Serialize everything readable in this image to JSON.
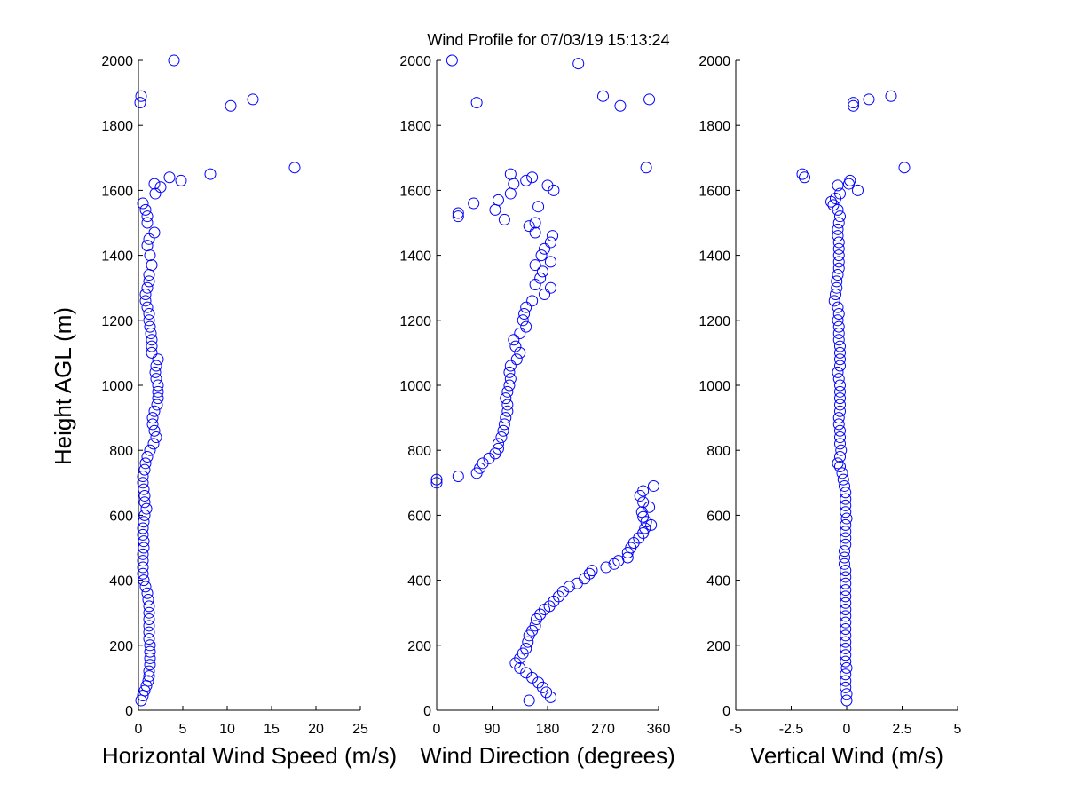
{
  "title": "Wind Profile for  07/03/19 15:13:24",
  "colors": {
    "marker": "#0000ff",
    "axis": "#000000",
    "background": "#ffffff"
  },
  "chart_data": [
    {
      "type": "scatter",
      "xlabel": "Horizontal Wind Speed (m/s)",
      "ylabel": "Height AGL (m)",
      "xlim": [
        0,
        25
      ],
      "ylim": [
        0,
        2000
      ],
      "xticks": [
        "0",
        "5",
        "10",
        "15",
        "20",
        "25"
      ],
      "yticks": [
        "0",
        "200",
        "400",
        "600",
        "800",
        "1000",
        "1200",
        "1400",
        "1600",
        "1800",
        "2000"
      ],
      "grid": false,
      "points": [
        {
          "x": 0.3,
          "y": 30
        },
        {
          "x": 0.5,
          "y": 45
        },
        {
          "x": 0.7,
          "y": 60
        },
        {
          "x": 0.9,
          "y": 75
        },
        {
          "x": 1.1,
          "y": 90
        },
        {
          "x": 1.2,
          "y": 105
        },
        {
          "x": 1.2,
          "y": 120
        },
        {
          "x": 1.3,
          "y": 140
        },
        {
          "x": 1.3,
          "y": 160
        },
        {
          "x": 1.3,
          "y": 180
        },
        {
          "x": 1.3,
          "y": 200
        },
        {
          "x": 1.2,
          "y": 220
        },
        {
          "x": 1.2,
          "y": 240
        },
        {
          "x": 1.2,
          "y": 260
        },
        {
          "x": 1.2,
          "y": 280
        },
        {
          "x": 1.2,
          "y": 300
        },
        {
          "x": 1.2,
          "y": 320
        },
        {
          "x": 1.1,
          "y": 340
        },
        {
          "x": 1.0,
          "y": 360
        },
        {
          "x": 0.8,
          "y": 380
        },
        {
          "x": 0.6,
          "y": 400
        },
        {
          "x": 0.5,
          "y": 420
        },
        {
          "x": 0.5,
          "y": 440
        },
        {
          "x": 0.5,
          "y": 460
        },
        {
          "x": 0.5,
          "y": 480
        },
        {
          "x": 0.6,
          "y": 500
        },
        {
          "x": 0.6,
          "y": 520
        },
        {
          "x": 0.5,
          "y": 540
        },
        {
          "x": 0.5,
          "y": 560
        },
        {
          "x": 0.6,
          "y": 580
        },
        {
          "x": 0.7,
          "y": 600
        },
        {
          "x": 0.9,
          "y": 620
        },
        {
          "x": 0.7,
          "y": 640
        },
        {
          "x": 0.7,
          "y": 660
        },
        {
          "x": 0.6,
          "y": 680
        },
        {
          "x": 0.5,
          "y": 700
        },
        {
          "x": 0.5,
          "y": 720
        },
        {
          "x": 0.7,
          "y": 740
        },
        {
          "x": 0.8,
          "y": 760
        },
        {
          "x": 1.0,
          "y": 780
        },
        {
          "x": 1.3,
          "y": 800
        },
        {
          "x": 1.7,
          "y": 820
        },
        {
          "x": 2.0,
          "y": 840
        },
        {
          "x": 1.8,
          "y": 860
        },
        {
          "x": 1.6,
          "y": 880
        },
        {
          "x": 1.6,
          "y": 900
        },
        {
          "x": 1.8,
          "y": 920
        },
        {
          "x": 2.1,
          "y": 940
        },
        {
          "x": 2.2,
          "y": 960
        },
        {
          "x": 2.2,
          "y": 980
        },
        {
          "x": 2.2,
          "y": 1000
        },
        {
          "x": 2.0,
          "y": 1020
        },
        {
          "x": 1.9,
          "y": 1040
        },
        {
          "x": 2.0,
          "y": 1060
        },
        {
          "x": 2.2,
          "y": 1080
        },
        {
          "x": 1.5,
          "y": 1100
        },
        {
          "x": 1.5,
          "y": 1120
        },
        {
          "x": 1.5,
          "y": 1140
        },
        {
          "x": 1.4,
          "y": 1160
        },
        {
          "x": 1.3,
          "y": 1180
        },
        {
          "x": 1.2,
          "y": 1200
        },
        {
          "x": 1.2,
          "y": 1220
        },
        {
          "x": 1.0,
          "y": 1240
        },
        {
          "x": 0.8,
          "y": 1260
        },
        {
          "x": 0.8,
          "y": 1280
        },
        {
          "x": 1.0,
          "y": 1300
        },
        {
          "x": 1.2,
          "y": 1320
        },
        {
          "x": 1.2,
          "y": 1340
        },
        {
          "x": 1.5,
          "y": 1370
        },
        {
          "x": 1.3,
          "y": 1400
        },
        {
          "x": 1.0,
          "y": 1430
        },
        {
          "x": 1.2,
          "y": 1450
        },
        {
          "x": 1.8,
          "y": 1470
        },
        {
          "x": 1.0,
          "y": 1500
        },
        {
          "x": 1.0,
          "y": 1520
        },
        {
          "x": 0.8,
          "y": 1540
        },
        {
          "x": 0.5,
          "y": 1560
        },
        {
          "x": 1.9,
          "y": 1590
        },
        {
          "x": 1.8,
          "y": 1620
        },
        {
          "x": 2.5,
          "y": 1610
        },
        {
          "x": 3.5,
          "y": 1640
        },
        {
          "x": 4.8,
          "y": 1630
        },
        {
          "x": 8.1,
          "y": 1650
        },
        {
          "x": 17.6,
          "y": 1670
        },
        {
          "x": 10.4,
          "y": 1860
        },
        {
          "x": 12.9,
          "y": 1880
        },
        {
          "x": 0.2,
          "y": 1870
        },
        {
          "x": 0.3,
          "y": 1890
        },
        {
          "x": 4.0,
          "y": 2000
        }
      ]
    },
    {
      "type": "scatter",
      "xlabel": "Wind Direction (degrees)",
      "ylabel": "",
      "xlim": [
        0,
        360
      ],
      "ylim": [
        0,
        2000
      ],
      "xticks": [
        "0",
        "90",
        "180",
        "270",
        "360"
      ],
      "yticks": [
        "0",
        "200",
        "400",
        "600",
        "800",
        "1000",
        "1200",
        "1400",
        "1600",
        "1800",
        "2000"
      ],
      "grid": false,
      "points": [
        {
          "x": 150,
          "y": 30
        },
        {
          "x": 185,
          "y": 40
        },
        {
          "x": 178,
          "y": 55
        },
        {
          "x": 172,
          "y": 70
        },
        {
          "x": 165,
          "y": 85
        },
        {
          "x": 155,
          "y": 100
        },
        {
          "x": 145,
          "y": 115
        },
        {
          "x": 135,
          "y": 130
        },
        {
          "x": 128,
          "y": 145
        },
        {
          "x": 135,
          "y": 160
        },
        {
          "x": 140,
          "y": 175
        },
        {
          "x": 145,
          "y": 190
        },
        {
          "x": 148,
          "y": 210
        },
        {
          "x": 150,
          "y": 230
        },
        {
          "x": 155,
          "y": 245
        },
        {
          "x": 160,
          "y": 260
        },
        {
          "x": 162,
          "y": 280
        },
        {
          "x": 168,
          "y": 295
        },
        {
          "x": 175,
          "y": 310
        },
        {
          "x": 183,
          "y": 320
        },
        {
          "x": 190,
          "y": 335
        },
        {
          "x": 198,
          "y": 350
        },
        {
          "x": 205,
          "y": 365
        },
        {
          "x": 215,
          "y": 380
        },
        {
          "x": 228,
          "y": 390
        },
        {
          "x": 240,
          "y": 405
        },
        {
          "x": 248,
          "y": 420
        },
        {
          "x": 252,
          "y": 430
        },
        {
          "x": 275,
          "y": 440
        },
        {
          "x": 288,
          "y": 450
        },
        {
          "x": 295,
          "y": 460
        },
        {
          "x": 310,
          "y": 470
        },
        {
          "x": 310,
          "y": 485
        },
        {
          "x": 315,
          "y": 500
        },
        {
          "x": 320,
          "y": 515
        },
        {
          "x": 328,
          "y": 530
        },
        {
          "x": 335,
          "y": 545
        },
        {
          "x": 338,
          "y": 560
        },
        {
          "x": 348,
          "y": 570
        },
        {
          "x": 340,
          "y": 580
        },
        {
          "x": 335,
          "y": 595
        },
        {
          "x": 333,
          "y": 610
        },
        {
          "x": 345,
          "y": 625
        },
        {
          "x": 335,
          "y": 640
        },
        {
          "x": 330,
          "y": 660
        },
        {
          "x": 335,
          "y": 675
        },
        {
          "x": 352,
          "y": 690
        },
        {
          "x": 0,
          "y": 700
        },
        {
          "x": 0,
          "y": 710
        },
        {
          "x": 35,
          "y": 720
        },
        {
          "x": 65,
          "y": 730
        },
        {
          "x": 70,
          "y": 745
        },
        {
          "x": 75,
          "y": 760
        },
        {
          "x": 85,
          "y": 775
        },
        {
          "x": 95,
          "y": 790
        },
        {
          "x": 100,
          "y": 805
        },
        {
          "x": 100,
          "y": 820
        },
        {
          "x": 105,
          "y": 840
        },
        {
          "x": 108,
          "y": 860
        },
        {
          "x": 110,
          "y": 880
        },
        {
          "x": 112,
          "y": 900
        },
        {
          "x": 115,
          "y": 920
        },
        {
          "x": 115,
          "y": 940
        },
        {
          "x": 112,
          "y": 960
        },
        {
          "x": 115,
          "y": 980
        },
        {
          "x": 118,
          "y": 1000
        },
        {
          "x": 120,
          "y": 1020
        },
        {
          "x": 118,
          "y": 1040
        },
        {
          "x": 120,
          "y": 1060
        },
        {
          "x": 130,
          "y": 1080
        },
        {
          "x": 135,
          "y": 1100
        },
        {
          "x": 128,
          "y": 1120
        },
        {
          "x": 125,
          "y": 1140
        },
        {
          "x": 135,
          "y": 1160
        },
        {
          "x": 145,
          "y": 1180
        },
        {
          "x": 140,
          "y": 1200
        },
        {
          "x": 142,
          "y": 1220
        },
        {
          "x": 145,
          "y": 1240
        },
        {
          "x": 155,
          "y": 1260
        },
        {
          "x": 175,
          "y": 1280
        },
        {
          "x": 185,
          "y": 1300
        },
        {
          "x": 160,
          "y": 1310
        },
        {
          "x": 168,
          "y": 1330
        },
        {
          "x": 172,
          "y": 1350
        },
        {
          "x": 160,
          "y": 1370
        },
        {
          "x": 185,
          "y": 1380
        },
        {
          "x": 170,
          "y": 1400
        },
        {
          "x": 175,
          "y": 1420
        },
        {
          "x": 185,
          "y": 1440
        },
        {
          "x": 188,
          "y": 1460
        },
        {
          "x": 160,
          "y": 1470
        },
        {
          "x": 150,
          "y": 1490
        },
        {
          "x": 160,
          "y": 1500
        },
        {
          "x": 110,
          "y": 1510
        },
        {
          "x": 35,
          "y": 1520
        },
        {
          "x": 35,
          "y": 1530
        },
        {
          "x": 95,
          "y": 1540
        },
        {
          "x": 165,
          "y": 1550
        },
        {
          "x": 60,
          "y": 1560
        },
        {
          "x": 100,
          "y": 1570
        },
        {
          "x": 120,
          "y": 1590
        },
        {
          "x": 190,
          "y": 1600
        },
        {
          "x": 180,
          "y": 1615
        },
        {
          "x": 125,
          "y": 1620
        },
        {
          "x": 145,
          "y": 1630
        },
        {
          "x": 155,
          "y": 1640
        },
        {
          "x": 120,
          "y": 1650
        },
        {
          "x": 340,
          "y": 1670
        },
        {
          "x": 65,
          "y": 1870
        },
        {
          "x": 270,
          "y": 1890
        },
        {
          "x": 298,
          "y": 1860
        },
        {
          "x": 345,
          "y": 1880
        },
        {
          "x": 230,
          "y": 1990
        },
        {
          "x": 25,
          "y": 2000
        }
      ]
    },
    {
      "type": "scatter",
      "xlabel": "Vertical Wind (m/s)",
      "ylabel": "",
      "xlim": [
        -5,
        5
      ],
      "ylim": [
        0,
        2000
      ],
      "xticks": [
        "-5",
        "-2.5",
        "0",
        "2.5",
        "5"
      ],
      "yticks": [
        "0",
        "200",
        "400",
        "600",
        "800",
        "1000",
        "1200",
        "1400",
        "1600",
        "1800",
        "2000"
      ],
      "grid": false,
      "points": [
        {
          "x": 0.0,
          "y": 30
        },
        {
          "x": 0.0,
          "y": 50
        },
        {
          "x": -0.05,
          "y": 70
        },
        {
          "x": -0.05,
          "y": 90
        },
        {
          "x": -0.05,
          "y": 110
        },
        {
          "x": 0.0,
          "y": 130
        },
        {
          "x": -0.05,
          "y": 150
        },
        {
          "x": -0.05,
          "y": 170
        },
        {
          "x": -0.05,
          "y": 190
        },
        {
          "x": -0.05,
          "y": 210
        },
        {
          "x": -0.05,
          "y": 230
        },
        {
          "x": -0.05,
          "y": 250
        },
        {
          "x": -0.05,
          "y": 270
        },
        {
          "x": -0.05,
          "y": 290
        },
        {
          "x": -0.05,
          "y": 310
        },
        {
          "x": -0.05,
          "y": 330
        },
        {
          "x": -0.05,
          "y": 350
        },
        {
          "x": -0.05,
          "y": 370
        },
        {
          "x": -0.05,
          "y": 390
        },
        {
          "x": -0.05,
          "y": 410
        },
        {
          "x": -0.05,
          "y": 430
        },
        {
          "x": -0.1,
          "y": 450
        },
        {
          "x": -0.1,
          "y": 470
        },
        {
          "x": -0.1,
          "y": 490
        },
        {
          "x": -0.05,
          "y": 510
        },
        {
          "x": -0.05,
          "y": 530
        },
        {
          "x": -0.05,
          "y": 550
        },
        {
          "x": -0.05,
          "y": 570
        },
        {
          "x": 0.0,
          "y": 590
        },
        {
          "x": -0.05,
          "y": 610
        },
        {
          "x": -0.05,
          "y": 630
        },
        {
          "x": -0.05,
          "y": 650
        },
        {
          "x": -0.05,
          "y": 670
        },
        {
          "x": -0.1,
          "y": 690
        },
        {
          "x": -0.15,
          "y": 710
        },
        {
          "x": -0.2,
          "y": 730
        },
        {
          "x": -0.3,
          "y": 750
        },
        {
          "x": -0.4,
          "y": 760
        },
        {
          "x": -0.3,
          "y": 780
        },
        {
          "x": -0.25,
          "y": 800
        },
        {
          "x": -0.3,
          "y": 820
        },
        {
          "x": -0.3,
          "y": 840
        },
        {
          "x": -0.3,
          "y": 860
        },
        {
          "x": -0.35,
          "y": 880
        },
        {
          "x": -0.35,
          "y": 900
        },
        {
          "x": -0.3,
          "y": 920
        },
        {
          "x": -0.3,
          "y": 940
        },
        {
          "x": -0.3,
          "y": 960
        },
        {
          "x": -0.3,
          "y": 980
        },
        {
          "x": -0.3,
          "y": 1000
        },
        {
          "x": -0.35,
          "y": 1020
        },
        {
          "x": -0.4,
          "y": 1040
        },
        {
          "x": -0.3,
          "y": 1060
        },
        {
          "x": -0.3,
          "y": 1080
        },
        {
          "x": -0.3,
          "y": 1100
        },
        {
          "x": -0.3,
          "y": 1120
        },
        {
          "x": -0.35,
          "y": 1140
        },
        {
          "x": -0.35,
          "y": 1160
        },
        {
          "x": -0.35,
          "y": 1180
        },
        {
          "x": -0.4,
          "y": 1200
        },
        {
          "x": -0.35,
          "y": 1220
        },
        {
          "x": -0.4,
          "y": 1240
        },
        {
          "x": -0.55,
          "y": 1260
        },
        {
          "x": -0.5,
          "y": 1280
        },
        {
          "x": -0.45,
          "y": 1300
        },
        {
          "x": -0.45,
          "y": 1320
        },
        {
          "x": -0.4,
          "y": 1340
        },
        {
          "x": -0.35,
          "y": 1360
        },
        {
          "x": -0.35,
          "y": 1380
        },
        {
          "x": -0.35,
          "y": 1400
        },
        {
          "x": -0.35,
          "y": 1420
        },
        {
          "x": -0.35,
          "y": 1440
        },
        {
          "x": -0.4,
          "y": 1460
        },
        {
          "x": -0.4,
          "y": 1480
        },
        {
          "x": -0.35,
          "y": 1500
        },
        {
          "x": -0.3,
          "y": 1520
        },
        {
          "x": -0.4,
          "y": 1540
        },
        {
          "x": -0.6,
          "y": 1555
        },
        {
          "x": -0.7,
          "y": 1565
        },
        {
          "x": -0.5,
          "y": 1575
        },
        {
          "x": -0.3,
          "y": 1590
        },
        {
          "x": 0.5,
          "y": 1600
        },
        {
          "x": -0.4,
          "y": 1615
        },
        {
          "x": 0.1,
          "y": 1620
        },
        {
          "x": 0.15,
          "y": 1630
        },
        {
          "x": -1.9,
          "y": 1640
        },
        {
          "x": -2.0,
          "y": 1650
        },
        {
          "x": 2.6,
          "y": 1670
        },
        {
          "x": 0.3,
          "y": 1860
        },
        {
          "x": 0.3,
          "y": 1870
        },
        {
          "x": 1.0,
          "y": 1880
        },
        {
          "x": 2.0,
          "y": 1890
        }
      ]
    }
  ]
}
